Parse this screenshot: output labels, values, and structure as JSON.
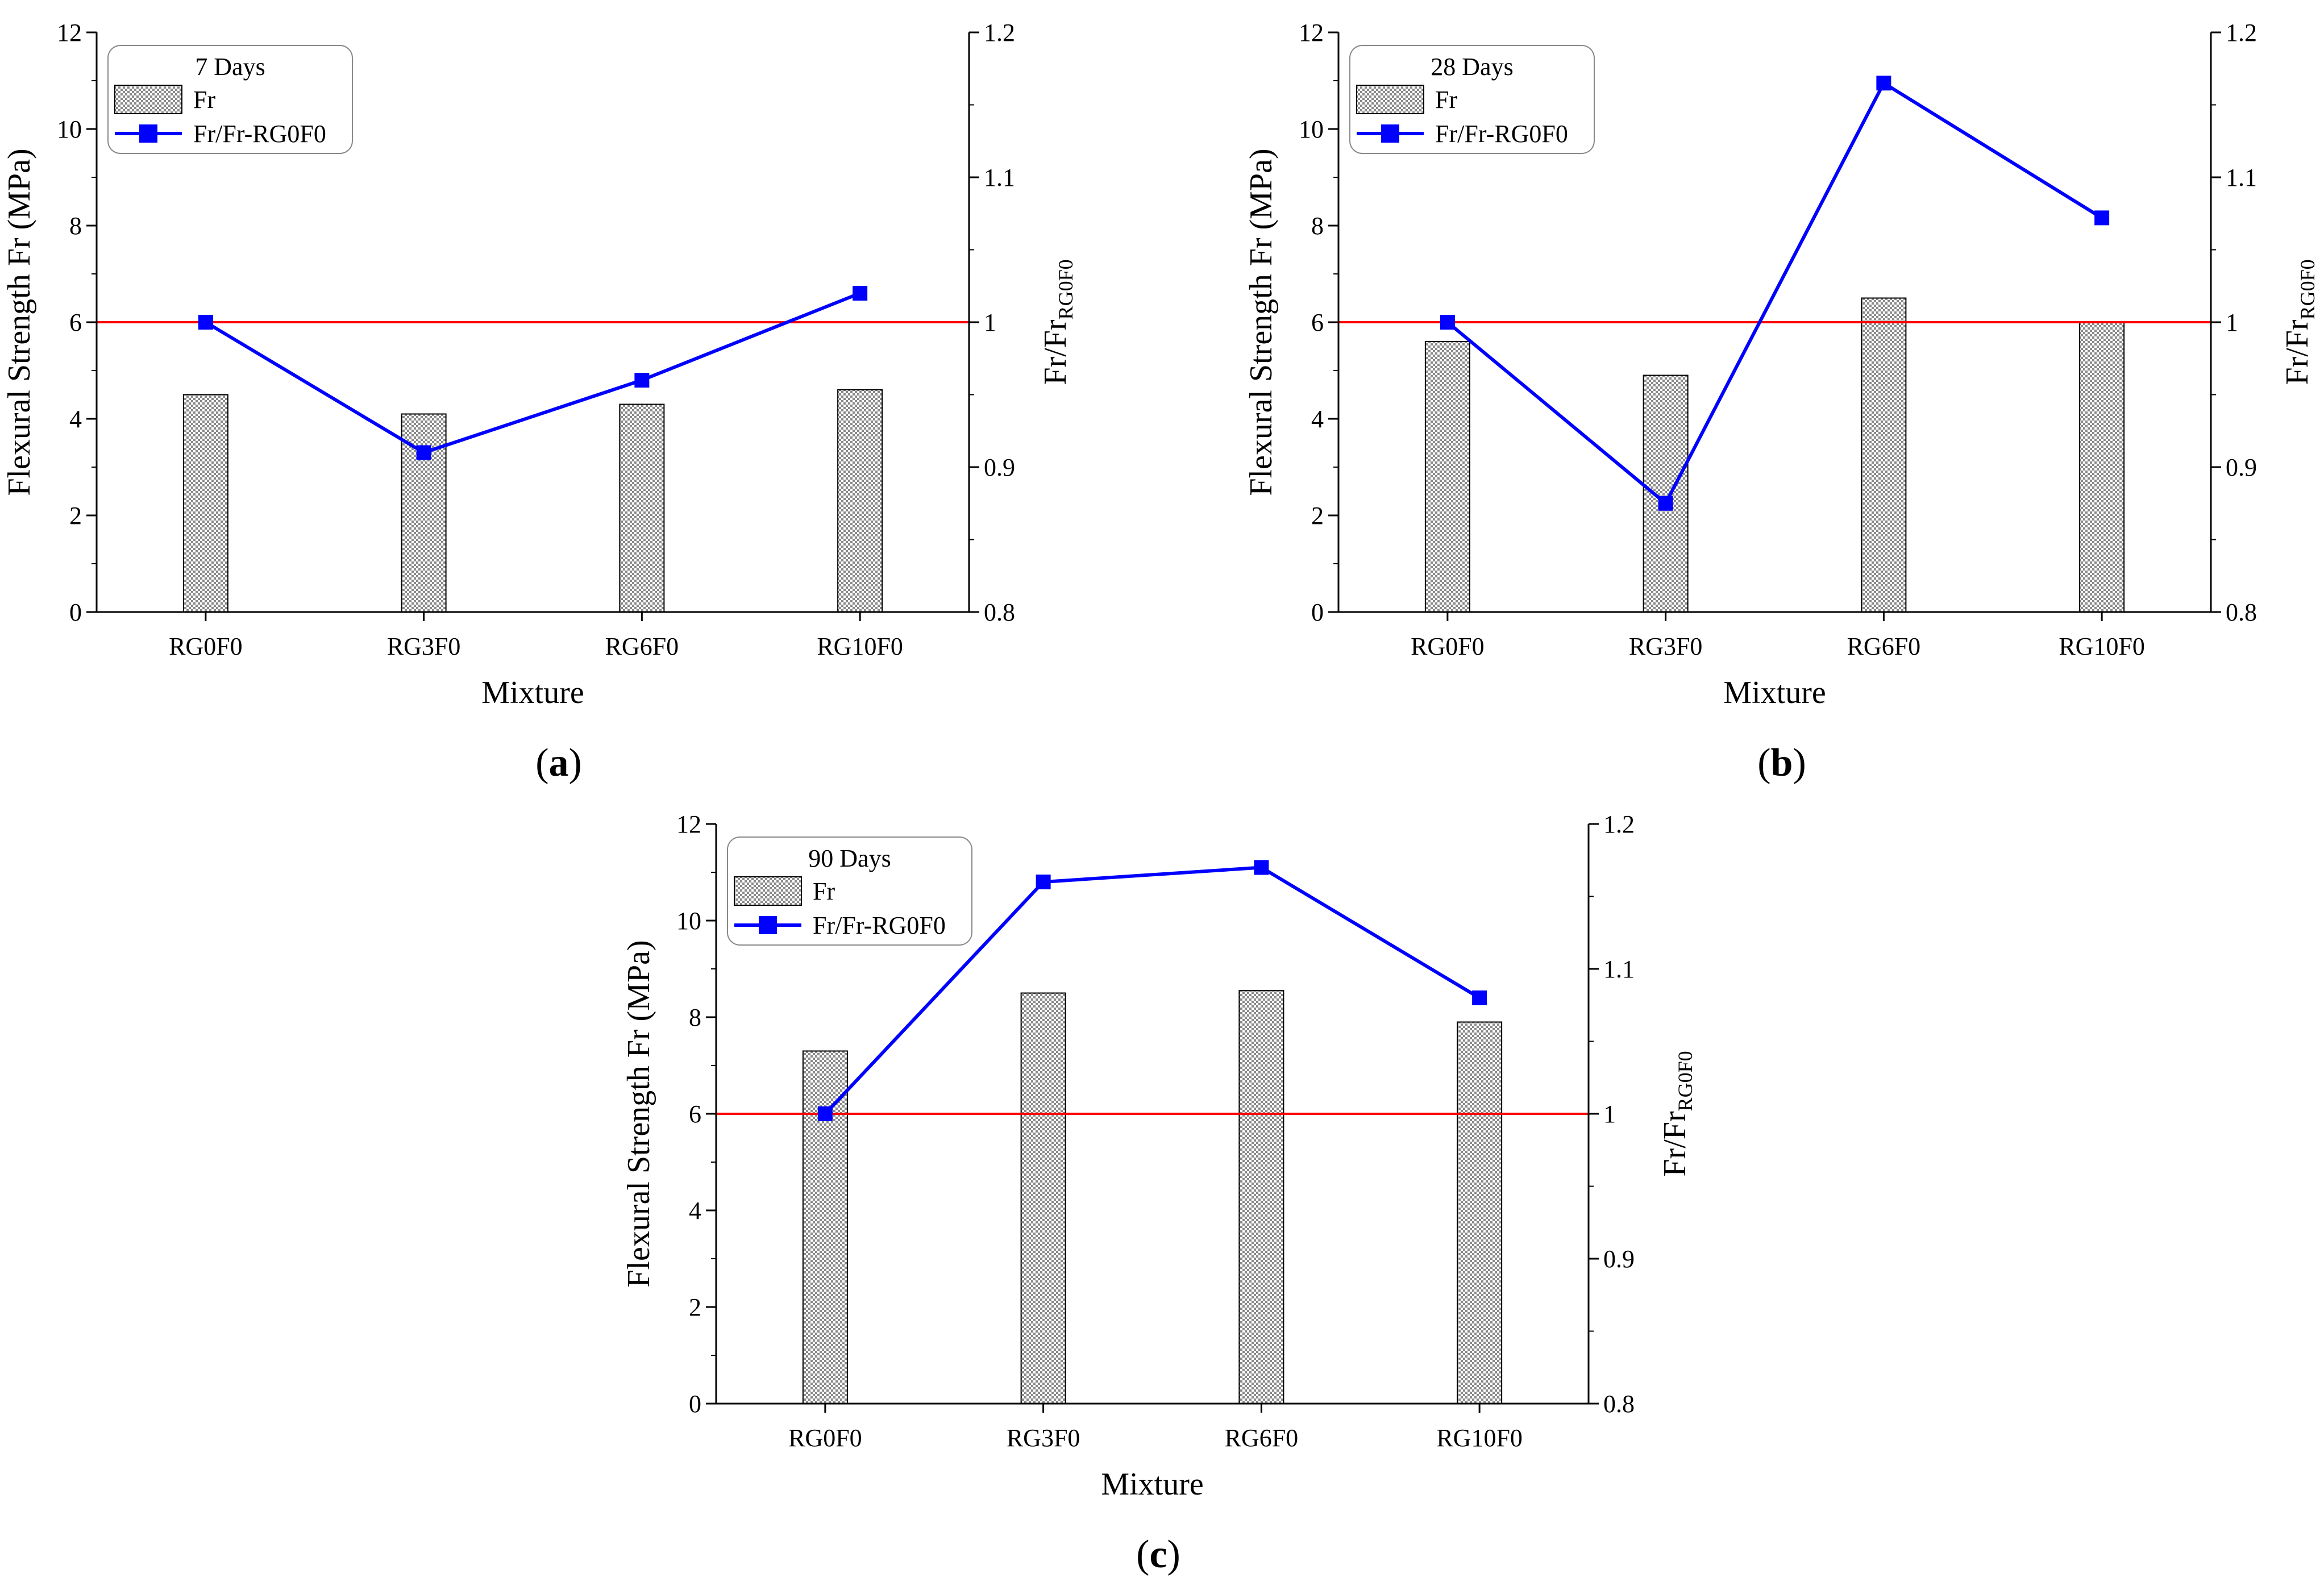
{
  "chart_data": [
    {
      "type": "bar",
      "panel": "a",
      "title": "",
      "legend_title": "7 Days",
      "legend_bar": "Fr",
      "legend_line": "Fr/Fr-RG0F0",
      "legend_position": "top-left",
      "xlabel": "Mixture",
      "ylabel": "Flexural Strength Fr (MPa)",
      "y2label_main": "Fr/Fr",
      "y2label_sub": "RG0F0",
      "categories": [
        "RG0F0",
        "RG3F0",
        "RG6F0",
        "RG10F0"
      ],
      "ylim": [
        0,
        12
      ],
      "yticks": [
        "0",
        "2",
        "4",
        "6",
        "8",
        "10",
        "12"
      ],
      "y2lim": [
        0.8,
        1.2
      ],
      "y2ticks": [
        "0.8",
        "0.9",
        "1",
        "1.1",
        "1.2"
      ],
      "series": [
        {
          "name": "Fr",
          "kind": "bar",
          "axis": "left",
          "values": [
            4.5,
            4.1,
            4.3,
            4.6
          ]
        },
        {
          "name": "Fr/Fr-RG0F0",
          "kind": "line",
          "axis": "right",
          "values": [
            1.0,
            0.91,
            0.96,
            1.02
          ]
        }
      ],
      "reference_line": {
        "axis": "right",
        "value": 1.0
      }
    },
    {
      "type": "bar",
      "panel": "b",
      "title": "",
      "legend_title": "28 Days",
      "legend_bar": "Fr",
      "legend_line": "Fr/Fr-RG0F0",
      "legend_position": "top-left",
      "xlabel": "Mixture",
      "ylabel": "Flexural Strength Fr (MPa)",
      "y2label_main": "Fr/Fr",
      "y2label_sub": "RG0F0",
      "categories": [
        "RG0F0",
        "RG3F0",
        "RG6F0",
        "RG10F0"
      ],
      "ylim": [
        0,
        12
      ],
      "yticks": [
        "0",
        "2",
        "4",
        "6",
        "8",
        "10",
        "12"
      ],
      "y2lim": [
        0.8,
        1.2
      ],
      "y2ticks": [
        "0.8",
        "0.9",
        "1",
        "1.1",
        "1.2"
      ],
      "series": [
        {
          "name": "Fr",
          "kind": "bar",
          "axis": "left",
          "values": [
            5.6,
            4.9,
            6.5,
            6.0
          ]
        },
        {
          "name": "Fr/Fr-RG0F0",
          "kind": "line",
          "axis": "right",
          "values": [
            1.0,
            0.875,
            1.165,
            1.072
          ]
        }
      ],
      "reference_line": {
        "axis": "right",
        "value": 1.0
      }
    },
    {
      "type": "bar",
      "panel": "c",
      "title": "",
      "legend_title": "90 Days",
      "legend_bar": "Fr",
      "legend_line": "Fr/Fr-RG0F0",
      "legend_position": "top-left",
      "xlabel": "Mixture",
      "ylabel": "Flexural Strength Fr (MPa)",
      "y2label_main": "Fr/Fr",
      "y2label_sub": "RG0F0",
      "categories": [
        "RG0F0",
        "RG3F0",
        "RG6F0",
        "RG10F0"
      ],
      "ylim": [
        0,
        12
      ],
      "yticks": [
        "0",
        "2",
        "4",
        "6",
        "8",
        "10",
        "12"
      ],
      "y2lim": [
        0.8,
        1.2
      ],
      "y2ticks": [
        "0.8",
        "0.9",
        "1",
        "1.1",
        "1.2"
      ],
      "series": [
        {
          "name": "Fr",
          "kind": "bar",
          "axis": "left",
          "values": [
            7.3,
            8.5,
            8.55,
            7.9
          ]
        },
        {
          "name": "Fr/Fr-RG0F0",
          "kind": "line",
          "axis": "right",
          "values": [
            1.0,
            1.16,
            1.17,
            1.08
          ]
        }
      ],
      "reference_line": {
        "axis": "right",
        "value": 1.0
      }
    }
  ],
  "colors": {
    "bar_fill_light": "#ffffff",
    "bar_fill_dark": "#8a8a8a",
    "bar_edge": "#000000",
    "line": "#0000ff",
    "reference": "#ff0000",
    "axis": "#000000"
  }
}
